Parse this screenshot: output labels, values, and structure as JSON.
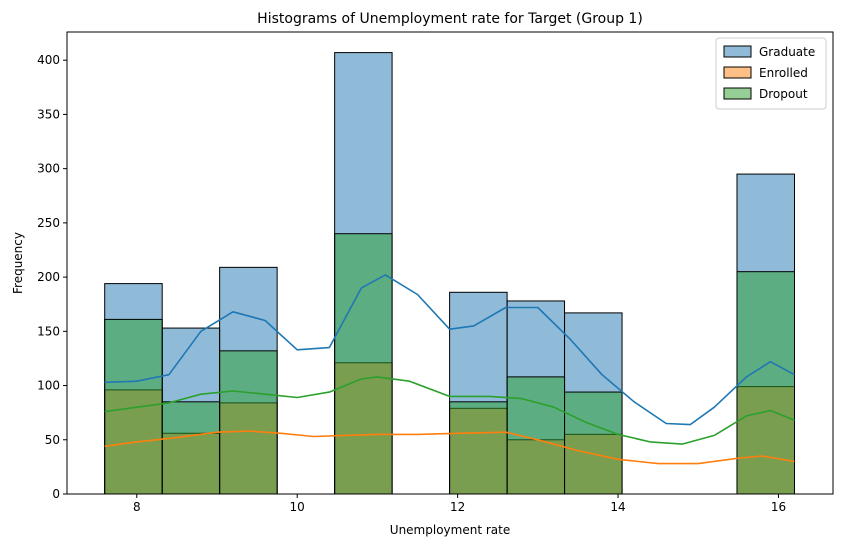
{
  "chart_data": {
    "type": "histogram",
    "title": "Histograms of Unemployment rate for Target (Group 1)",
    "xlabel": "Unemployment rate",
    "ylabel": "Frequency",
    "xlim": [
      7.13,
      16.68
    ],
    "ylim": [
      0,
      426
    ],
    "xticks": [
      8,
      10,
      12,
      14,
      16
    ],
    "yticks": [
      0,
      50,
      100,
      150,
      200,
      250,
      300,
      350,
      400
    ],
    "bin_edges": [
      7.6,
      8.317,
      9.033,
      9.75,
      10.467,
      11.183,
      11.9,
      12.617,
      13.333,
      14.05,
      14.767,
      15.483,
      16.2
    ],
    "legend_position": "upper-right",
    "series": [
      {
        "name": "Graduate",
        "color": "#1f77b4",
        "counts": [
          194,
          153,
          209,
          0,
          407,
          0,
          186,
          178,
          167,
          0,
          0,
          295
        ],
        "kde": [
          [
            7.6,
            103
          ],
          [
            8.0,
            104
          ],
          [
            8.4,
            110
          ],
          [
            8.8,
            150
          ],
          [
            9.2,
            168
          ],
          [
            9.6,
            160
          ],
          [
            10.0,
            133
          ],
          [
            10.4,
            135
          ],
          [
            10.8,
            190
          ],
          [
            11.1,
            202
          ],
          [
            11.5,
            184
          ],
          [
            11.9,
            152
          ],
          [
            12.2,
            155
          ],
          [
            12.6,
            172
          ],
          [
            13.0,
            172
          ],
          [
            13.4,
            143
          ],
          [
            13.8,
            110
          ],
          [
            14.2,
            85
          ],
          [
            14.6,
            65
          ],
          [
            14.9,
            64
          ],
          [
            15.2,
            80
          ],
          [
            15.6,
            108
          ],
          [
            15.9,
            122
          ],
          [
            16.2,
            110
          ]
        ]
      },
      {
        "name": "Enrolled",
        "color": "#ff7f0e",
        "counts": [
          96,
          56,
          84,
          0,
          121,
          0,
          79,
          50,
          55,
          0,
          0,
          99
        ],
        "kde": [
          [
            7.6,
            44
          ],
          [
            8.0,
            48
          ],
          [
            8.5,
            52
          ],
          [
            9.0,
            57
          ],
          [
            9.4,
            58
          ],
          [
            9.8,
            56
          ],
          [
            10.2,
            53
          ],
          [
            10.6,
            54
          ],
          [
            11.0,
            55
          ],
          [
            11.5,
            55
          ],
          [
            12.0,
            56
          ],
          [
            12.6,
            57
          ],
          [
            13.0,
            50
          ],
          [
            13.5,
            40
          ],
          [
            14.0,
            32
          ],
          [
            14.5,
            28
          ],
          [
            15.0,
            28
          ],
          [
            15.5,
            33
          ],
          [
            15.8,
            35
          ],
          [
            16.2,
            30
          ]
        ]
      },
      {
        "name": "Dropout",
        "color": "#2ca02c",
        "counts": [
          161,
          85,
          132,
          0,
          240,
          0,
          85,
          108,
          94,
          0,
          0,
          205
        ],
        "kde": [
          [
            7.6,
            76
          ],
          [
            8.0,
            80
          ],
          [
            8.4,
            84
          ],
          [
            8.8,
            92
          ],
          [
            9.2,
            95
          ],
          [
            9.6,
            92
          ],
          [
            10.0,
            89
          ],
          [
            10.4,
            94
          ],
          [
            10.8,
            106
          ],
          [
            11.0,
            108
          ],
          [
            11.4,
            104
          ],
          [
            11.9,
            90
          ],
          [
            12.4,
            90
          ],
          [
            12.8,
            88
          ],
          [
            13.2,
            80
          ],
          [
            13.6,
            66
          ],
          [
            14.0,
            55
          ],
          [
            14.4,
            48
          ],
          [
            14.8,
            46
          ],
          [
            15.2,
            54
          ],
          [
            15.6,
            72
          ],
          [
            15.9,
            77
          ],
          [
            16.2,
            68
          ]
        ]
      }
    ]
  }
}
